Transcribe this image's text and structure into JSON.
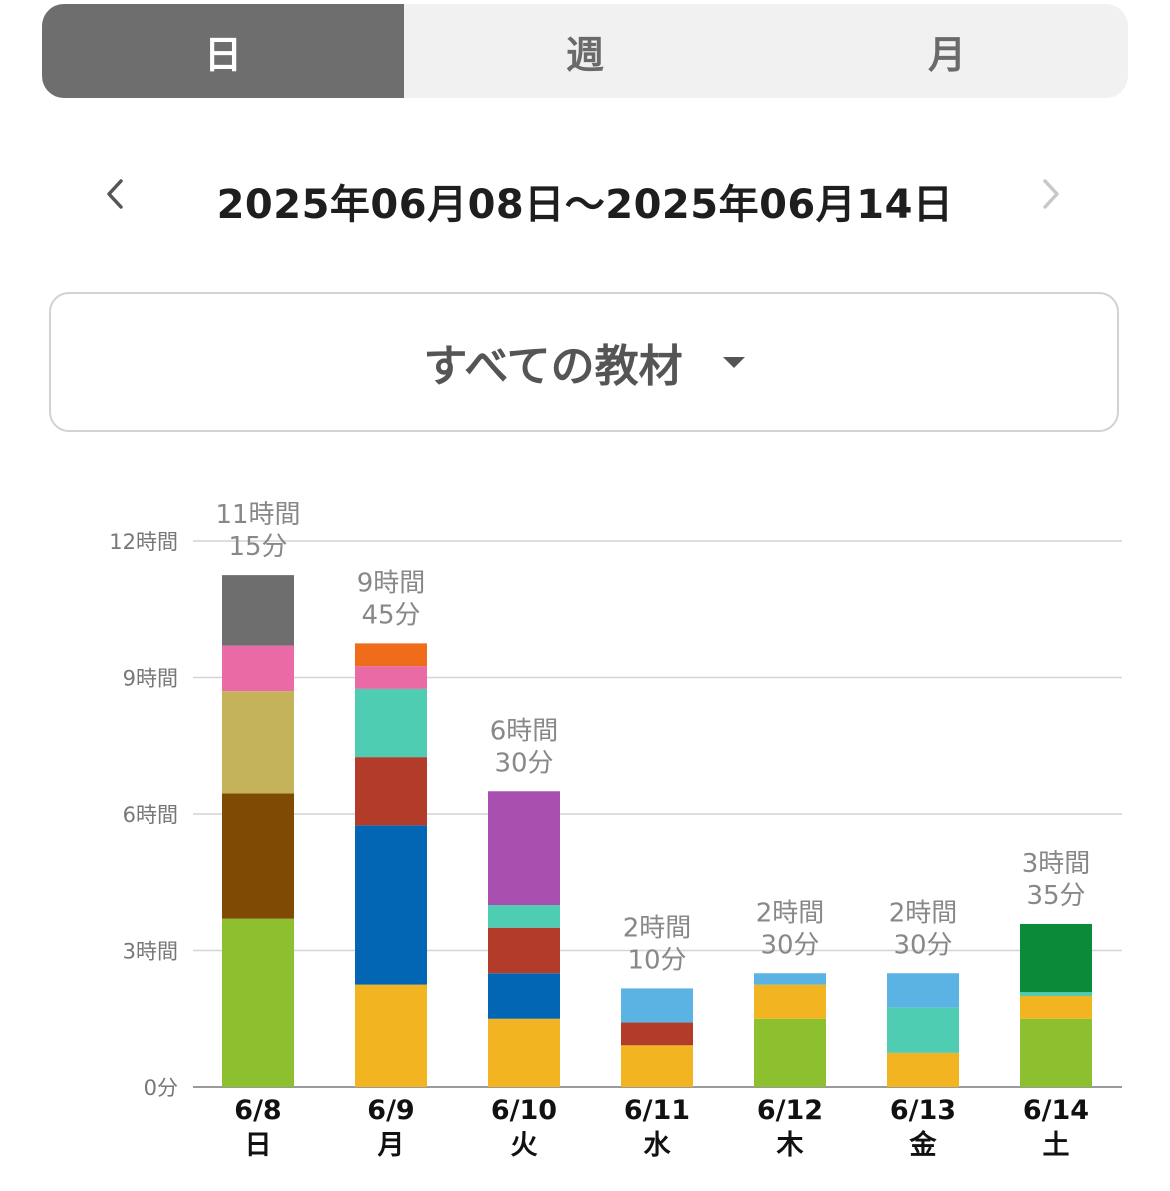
{
  "tabs": [
    {
      "label": "日",
      "active": true
    },
    {
      "label": "週",
      "active": false
    },
    {
      "label": "月",
      "active": false
    }
  ],
  "date_nav": {
    "range": "2025年06月08日〜2025年06月14日",
    "prev_icon": "chevron-left-icon",
    "next_icon": "chevron-right-icon"
  },
  "material_select": {
    "label": "すべての教材",
    "icon": "caret-down-icon"
  },
  "chart_data": {
    "type": "bar",
    "stacked": true,
    "unit": "minutes",
    "ylim": [
      0,
      720
    ],
    "yticks": [
      {
        "value": 0,
        "label": "0分"
      },
      {
        "value": 180,
        "label": "3時間"
      },
      {
        "value": 360,
        "label": "6時間"
      },
      {
        "value": 540,
        "label": "9時間"
      },
      {
        "value": 720,
        "label": "12時間"
      }
    ],
    "grid": true,
    "days": [
      {
        "date": "6/8",
        "weekday": "日",
        "total_label": [
          "11時間",
          "15分"
        ],
        "segments": [
          {
            "color": "#8dc02f",
            "value": 222
          },
          {
            "color": "#7f4a03",
            "value": 165
          },
          {
            "color": "#c4b35a",
            "value": 135
          },
          {
            "color": "#e96aa5",
            "value": 60
          },
          {
            "color": "#6e6e6e",
            "value": 93
          }
        ]
      },
      {
        "date": "6/9",
        "weekday": "月",
        "total_label": [
          "9時間",
          "45分"
        ],
        "segments": [
          {
            "color": "#f2b421",
            "value": 135
          },
          {
            "color": "#0266b5",
            "value": 210
          },
          {
            "color": "#b23c29",
            "value": 90
          },
          {
            "color": "#4ecdb3",
            "value": 90
          },
          {
            "color": "#e96aa5",
            "value": 30
          },
          {
            "color": "#ef6c1a",
            "value": 30
          }
        ]
      },
      {
        "date": "6/10",
        "weekday": "火",
        "total_label": [
          "6時間",
          "30分"
        ],
        "segments": [
          {
            "color": "#f2b421",
            "value": 90
          },
          {
            "color": "#0266b5",
            "value": 60
          },
          {
            "color": "#b23c29",
            "value": 60
          },
          {
            "color": "#4ecdb3",
            "value": 30
          },
          {
            "color": "#a94fb0",
            "value": 150
          }
        ]
      },
      {
        "date": "6/11",
        "weekday": "水",
        "total_label": [
          "2時間",
          "10分"
        ],
        "segments": [
          {
            "color": "#f2b421",
            "value": 55
          },
          {
            "color": "#b23c29",
            "value": 30
          },
          {
            "color": "#5ab3e2",
            "value": 45
          }
        ]
      },
      {
        "date": "6/12",
        "weekday": "木",
        "total_label": [
          "2時間",
          "30分"
        ],
        "segments": [
          {
            "color": "#8dc02f",
            "value": 90
          },
          {
            "color": "#f2b421",
            "value": 45
          },
          {
            "color": "#5ab3e2",
            "value": 15
          }
        ]
      },
      {
        "date": "6/13",
        "weekday": "金",
        "total_label": [
          "2時間",
          "30分"
        ],
        "segments": [
          {
            "color": "#f2b421",
            "value": 45
          },
          {
            "color": "#4ecdb3",
            "value": 60
          },
          {
            "color": "#5ab3e2",
            "value": 45
          }
        ]
      },
      {
        "date": "6/14",
        "weekday": "土",
        "total_label": [
          "3時間",
          "35分"
        ],
        "segments": [
          {
            "color": "#8dc02f",
            "value": 90
          },
          {
            "color": "#f2b421",
            "value": 30
          },
          {
            "color": "#4ecdb3",
            "value": 5
          },
          {
            "color": "#0b8a3a",
            "value": 90
          }
        ]
      }
    ]
  }
}
